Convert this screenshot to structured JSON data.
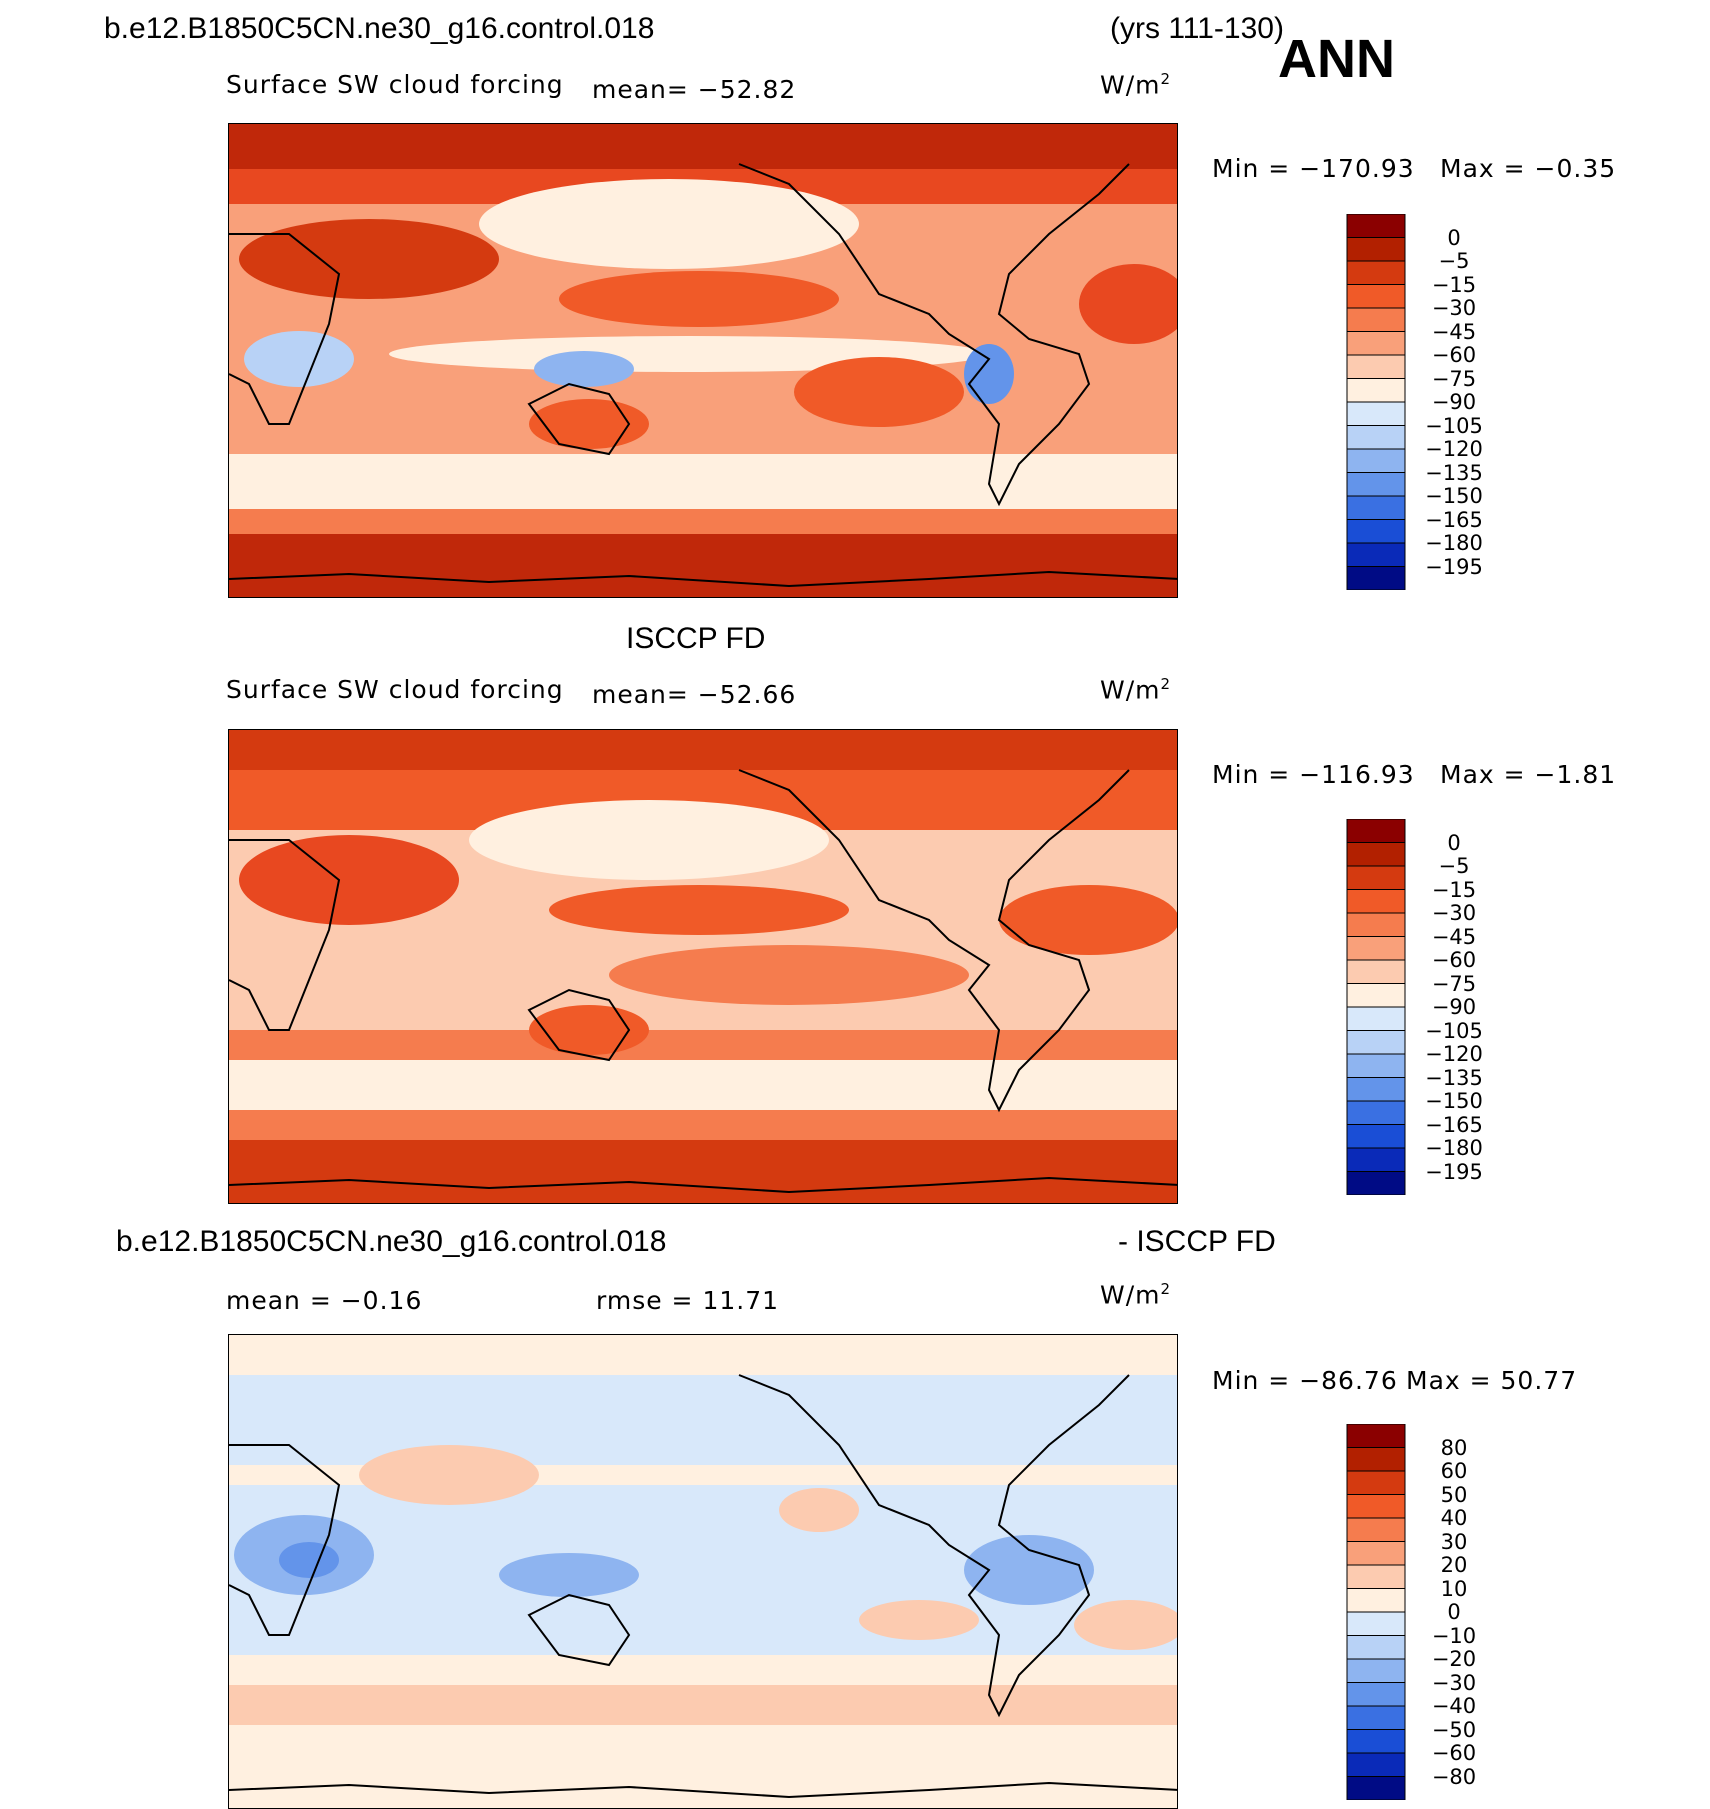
{
  "header": {
    "case_name": "b.e12.B1850C5CN.ne30_g16.control.018",
    "years": "(yrs 111-130)",
    "season": "ANN"
  },
  "panels": [
    {
      "id": "model",
      "title": "",
      "variable": "Surface SW cloud forcing",
      "mean_label": "mean= −52.82",
      "units": "W/m",
      "units_sup": "2",
      "min_label": "Min = −170.93",
      "max_label": "Max = −0.35"
    },
    {
      "id": "obs",
      "title": "ISCCP FD",
      "variable": "Surface SW cloud forcing",
      "mean_label": "mean= −52.66",
      "units": "W/m",
      "units_sup": "2",
      "min_label": "Min = −116.93",
      "max_label": "Max = −1.81"
    },
    {
      "id": "diff",
      "title_left": "b.e12.B1850C5CN.ne30_g16.control.018",
      "title_right": "- ISCCP FD",
      "mean_label": "mean = −0.16",
      "rmse_label": "rmse = 11.71",
      "units": "W/m",
      "units_sup": "2",
      "min_label": "Min = −86.76",
      "max_label": "Max = 50.77"
    }
  ],
  "chart_data": [
    {
      "type": "heatmap",
      "title": "Surface SW cloud forcing (model)",
      "units": "W/m2",
      "mean": -52.82,
      "min": -170.93,
      "max": -0.35,
      "colorbar_levels": [
        "0",
        "−5",
        "−15",
        "−30",
        "−45",
        "−60",
        "−75",
        "−90",
        "−105",
        "−120",
        "−135",
        "−150",
        "−165",
        "−180",
        "−195"
      ],
      "colorbar_colors": [
        "#8b0000",
        "#b22000",
        "#d43a10",
        "#f05a28",
        "#f57c4e",
        "#f9a07a",
        "#fccbb0",
        "#fff0e0",
        "#d8e8fa",
        "#b8d2f6",
        "#8eb4f0",
        "#6394ea",
        "#3a70e2",
        "#1a4ed6",
        "#0a2ab8",
        "#000b85"
      ]
    },
    {
      "type": "heatmap",
      "title": "Surface SW cloud forcing (ISCCP FD)",
      "units": "W/m2",
      "mean": -52.66,
      "min": -116.93,
      "max": -1.81,
      "colorbar_levels": [
        "0",
        "−5",
        "−15",
        "−30",
        "−45",
        "−60",
        "−75",
        "−90",
        "−105",
        "−120",
        "−135",
        "−150",
        "−165",
        "−180",
        "−195"
      ],
      "colorbar_colors": [
        "#8b0000",
        "#b22000",
        "#d43a10",
        "#f05a28",
        "#f57c4e",
        "#f9a07a",
        "#fccbb0",
        "#fff0e0",
        "#d8e8fa",
        "#b8d2f6",
        "#8eb4f0",
        "#6394ea",
        "#3a70e2",
        "#1a4ed6",
        "#0a2ab8",
        "#000b85"
      ]
    },
    {
      "type": "heatmap",
      "title": "Model - ISCCP FD difference",
      "units": "W/m2",
      "mean": -0.16,
      "rmse": 11.71,
      "min": -86.76,
      "max": 50.77,
      "colorbar_levels": [
        "80",
        "60",
        "50",
        "40",
        "30",
        "20",
        "10",
        "0",
        "−10",
        "−20",
        "−30",
        "−40",
        "−50",
        "−60",
        "−80"
      ],
      "colorbar_colors": [
        "#8b0000",
        "#b22000",
        "#d43a10",
        "#f05a28",
        "#f57c4e",
        "#f9a07a",
        "#fccbb0",
        "#fff0e0",
        "#d8e8fa",
        "#b8d2f6",
        "#8eb4f0",
        "#6394ea",
        "#3a70e2",
        "#1a4ed6",
        "#0a2ab8",
        "#000b85"
      ]
    }
  ]
}
